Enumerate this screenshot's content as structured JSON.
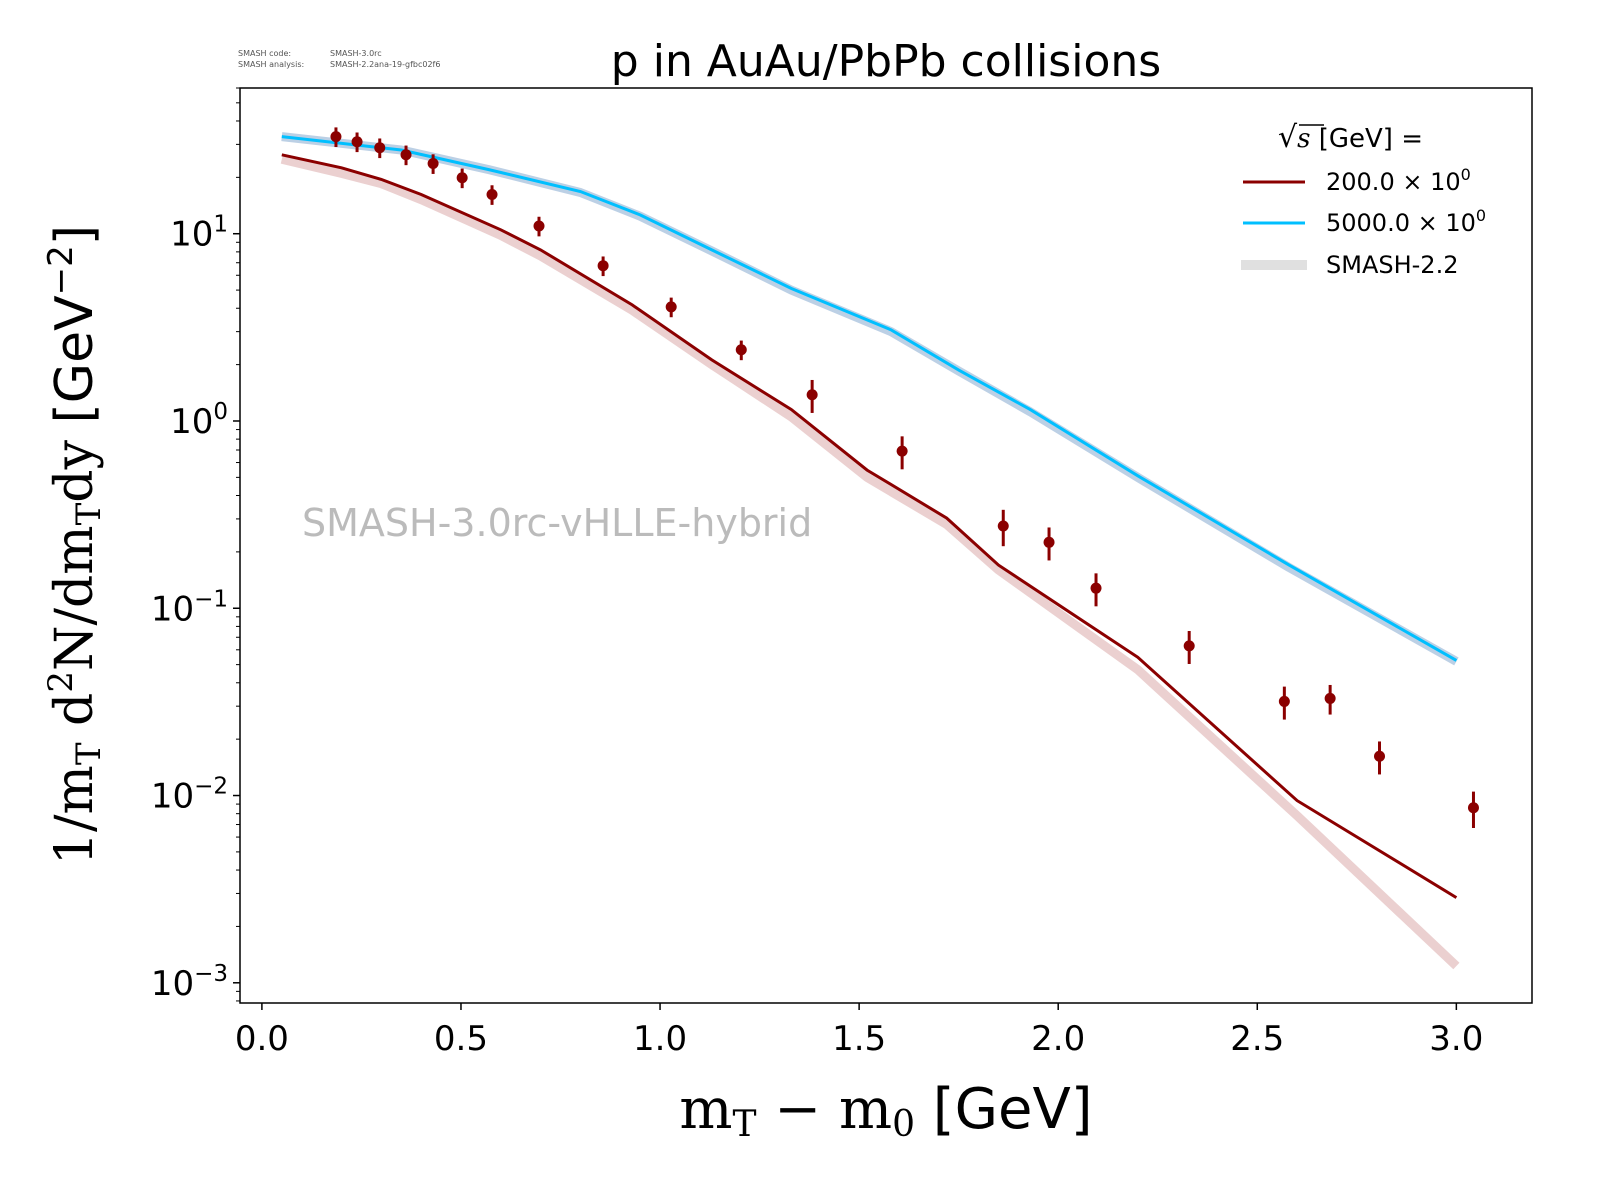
{
  "meta_text": {
    "line1_label": "SMASH code:",
    "line1_value": "SMASH-3.0rc",
    "line2_label": "SMASH analysis:",
    "line2_value": "SMASH-2.2ana-19-gfbc02f6"
  },
  "chart_data": {
    "type": "line",
    "title": "p in AuAu/PbPb collisions",
    "watermark": "SMASH-3.0rc-vHLLE-hybrid",
    "xlabel": {
      "main": "m",
      "sub1": "T",
      "minus": " − m",
      "sub2": "0",
      "unit": " [GeV]"
    },
    "ylabel": {
      "p1": "1/m",
      "s1": "T",
      "p2": " d",
      "sup1": "2",
      "p3": "N/dm",
      "s2": "T",
      "p4": "dy",
      "unit": " [GeV",
      "sup2": "−2",
      "unit_end": "]"
    },
    "xlim": [
      -0.055,
      3.19
    ],
    "ylim": [
      0.00078,
      60
    ],
    "yscale": "log",
    "grid": false,
    "xticks": [
      0.0,
      0.5,
      1.0,
      1.5,
      2.0,
      2.5,
      3.0
    ],
    "xtick_labels": [
      "0.0",
      "0.5",
      "1.0",
      "1.5",
      "2.0",
      "2.5",
      "3.0"
    ],
    "yticks": [
      10,
      1,
      0.1,
      0.01,
      0.001
    ],
    "ytick_labels": [
      {
        "base": "10",
        "exp": "1"
      },
      {
        "base": "10",
        "exp": "0"
      },
      {
        "base": "10",
        "exp": "−1"
      },
      {
        "base": "10",
        "exp": "−2"
      },
      {
        "base": "10",
        "exp": "−3"
      }
    ],
    "legend": {
      "placement": "top-right",
      "title_sqrt": "s",
      "title_rest": " [GeV] =",
      "entries": [
        {
          "label": "200.0 × 10",
          "exp": "0",
          "color": "#8b0000",
          "style": "line"
        },
        {
          "label": "5000.0 × 10",
          "exp": "0",
          "color": "#00bfff",
          "style": "line"
        },
        {
          "label": "SMASH-2.2",
          "color": "#e0e0e0",
          "style": "band"
        }
      ]
    },
    "series": [
      {
        "key": "smash22_200",
        "kind": "band",
        "color": "#e8c8c8",
        "x": [
          0.05,
          0.2,
          0.3,
          0.4,
          0.6,
          0.7,
          0.93,
          1.13,
          1.33,
          1.52,
          1.72,
          1.85,
          2.2,
          2.6,
          3.0
        ],
        "y": [
          25,
          21,
          18.5,
          15.2,
          9.8,
          7.6,
          3.9,
          2.0,
          1.05,
          0.5,
          0.28,
          0.16,
          0.047,
          0.0078,
          0.00123
        ]
      },
      {
        "key": "smash22_5000",
        "kind": "band",
        "color": "#b0c8e0",
        "x": [
          0.05,
          0.35,
          0.57,
          0.8,
          0.95,
          1.13,
          1.33,
          1.58,
          1.75,
          1.93,
          2.2,
          2.58,
          3.0
        ],
        "y": [
          33,
          28,
          22,
          16.6,
          12.4,
          8.1,
          5.0,
          3.0,
          1.85,
          1.12,
          0.5,
          0.165,
          0.052
        ]
      },
      {
        "key": "sqrt_s_200",
        "kind": "line",
        "color": "#8b0000",
        "x": [
          0.05,
          0.2,
          0.3,
          0.4,
          0.6,
          0.7,
          0.93,
          1.13,
          1.33,
          1.52,
          1.72,
          1.85,
          2.2,
          2.6,
          3.0
        ],
        "y": [
          26.4,
          22.5,
          19.5,
          16.2,
          10.5,
          8.2,
          4.17,
          2.12,
          1.15,
          0.547,
          0.303,
          0.17,
          0.0547,
          0.0094,
          0.00285
        ]
      },
      {
        "key": "sqrt_s_5000",
        "kind": "line",
        "color": "#00bfff",
        "x": [
          0.05,
          0.35,
          0.57,
          0.8,
          0.95,
          1.13,
          1.33,
          1.58,
          1.75,
          1.93,
          2.2,
          2.58,
          3.0
        ],
        "y": [
          33,
          28,
          22,
          16.8,
          12.6,
          8.2,
          5.1,
          3.07,
          1.87,
          1.15,
          0.51,
          0.17,
          0.0527
        ]
      },
      {
        "key": "data_200",
        "kind": "errorbar",
        "color": "#8b0000",
        "x": [
          0.186,
          0.239,
          0.296,
          0.362,
          0.43,
          0.503,
          0.578,
          0.696,
          0.857,
          1.028,
          1.204,
          1.382,
          1.608,
          1.862,
          1.977,
          2.095,
          2.329,
          2.568,
          2.683,
          2.807,
          3.043
        ],
        "y": [
          33,
          31,
          28.8,
          26.4,
          23.7,
          19.9,
          16.2,
          11.0,
          6.75,
          4.07,
          2.4,
          1.38,
          0.69,
          0.275,
          0.225,
          0.128,
          0.063,
          0.0318,
          0.033,
          0.0162,
          0.0086
        ],
        "yerr_rel": [
          0.12,
          0.12,
          0.12,
          0.12,
          0.12,
          0.12,
          0.12,
          0.12,
          0.12,
          0.12,
          0.12,
          0.2,
          0.2,
          0.22,
          0.2,
          0.2,
          0.2,
          0.2,
          0.18,
          0.2,
          0.22
        ]
      }
    ]
  }
}
